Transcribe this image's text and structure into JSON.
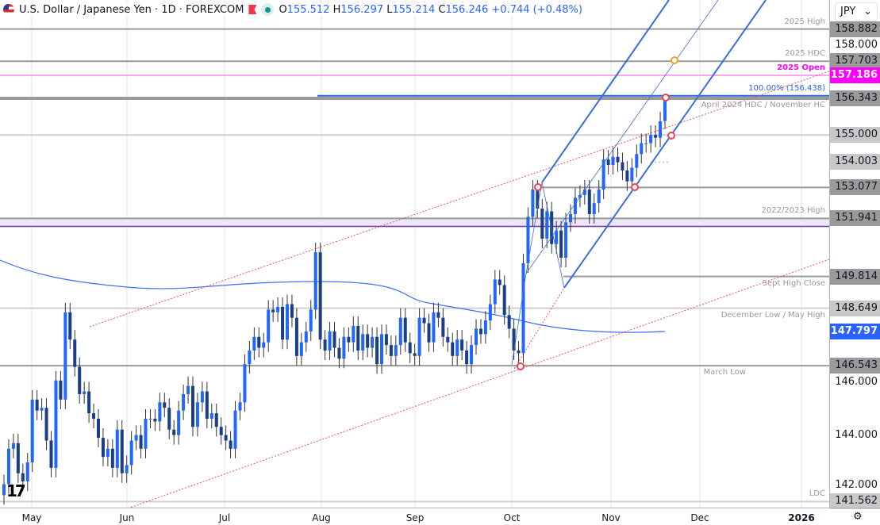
{
  "header": {
    "symbol_title": "U.S. Dollar / Japanese Yen · 1D · FOREXCOM",
    "open_label": "O",
    "open": "155.512",
    "high_label": "H",
    "high": "156.297",
    "low_label": "L",
    "low": "155.214",
    "close_label": "C",
    "close": "156.246",
    "change": "+0.744 (+0.48%)"
  },
  "currency_select": {
    "value": "JPY"
  },
  "colors": {
    "up": "#2166ff",
    "down": "#1b3f87",
    "ma": "#3d6ff0",
    "channel": "#3a6fd8",
    "trend": "#f05060",
    "open_line": "#ff00ff",
    "level": "#9598a1"
  },
  "levels": [
    {
      "label": "2025 High",
      "value": "158.882",
      "price": 158.882
    },
    {
      "label": "2025 HDC",
      "value": "157.703",
      "price": 157.703
    },
    {
      "label": "2025 Open",
      "value": "157.186",
      "price": 157.186
    },
    {
      "label": "100.00% (156.438)",
      "value": "",
      "price": 156.438
    },
    {
      "label": "April 2024 HDC / November HC",
      "value": "156.343",
      "price": 156.343
    },
    {
      "label": "",
      "value": "155.000",
      "price": 155.0
    },
    {
      "label": "",
      "value": "154.003",
      "price": 154.003
    },
    {
      "label": "",
      "value": "153.077",
      "price": 153.077
    },
    {
      "label": "2022/2023 High",
      "value": "151.941",
      "price": 151.941
    },
    {
      "label": "Sept High Close",
      "value": "149.814",
      "price": 149.814
    },
    {
      "label": "December Low / May High",
      "value": "148.649",
      "price": 148.649
    },
    {
      "label": "",
      "value": "147.797",
      "price": 147.797
    },
    {
      "label": "March Low",
      "value": "146.543",
      "price": 146.543
    },
    {
      "label": "LDC",
      "value": "141.562",
      "price": 141.562
    }
  ],
  "price_ticks": [
    "158.000",
    "146.000",
    "144.000",
    "142.000"
  ],
  "x_labels": [
    "May",
    "Jun",
    "Jul",
    "Aug",
    "Sep",
    "Oct",
    "Nov",
    "Dec",
    "2026"
  ],
  "chart_data": {
    "type": "candlestick",
    "closes": [
      142.2,
      143.5,
      143.7,
      142.6,
      142.3,
      143.0,
      145.3,
      144.9,
      145.0,
      143.8,
      142.8,
      146.0,
      145.3,
      148.5,
      147.5,
      146.5,
      145.5,
      145.6,
      144.8,
      144.6,
      143.9,
      143.2,
      143.5,
      142.8,
      144.2,
      142.6,
      142.9,
      143.8,
      144.0,
      143.5,
      144.6,
      144.6,
      144.5,
      145.2,
      145.0,
      144.2,
      144.0,
      144.9,
      145.5,
      145.8,
      144.3,
      145.2,
      145.6,
      144.6,
      144.8,
      144.3,
      144.0,
      143.8,
      143.5,
      144.9,
      145.2,
      146.6,
      147.1,
      147.6,
      147.2,
      147.4,
      148.6,
      148.5,
      148.7,
      147.5,
      148.8,
      148.3,
      146.9,
      147.4,
      147.8,
      148.6,
      150.7,
      147.5,
      147.1,
      147.8,
      147.2,
      146.8,
      147.6,
      147.4,
      148.0,
      147.1,
      147.7,
      147.2,
      147.6,
      146.6,
      147.7,
      147.3,
      146.9,
      147.3,
      148.3,
      147.4,
      147.0,
      146.9,
      148.3,
      148.1,
      147.4,
      148.5,
      148.3,
      147.6,
      147.4,
      146.9,
      147.5,
      147.1,
      146.6,
      147.3,
      147.9,
      147.7,
      148.2,
      148.8,
      149.7,
      149.5,
      148.4,
      147.9,
      147.1,
      147.0,
      150.3,
      152.0,
      153.0,
      152.3,
      151.2,
      152.2,
      151.0,
      151.5,
      150.5,
      151.8,
      152.1,
      152.7,
      152.8,
      153.0,
      152.1,
      152.5,
      153.0,
      154.1,
      153.9,
      154.2,
      154.0,
      153.7,
      153.3,
      153.8,
      154.3,
      154.7,
      154.7,
      155.0,
      154.9,
      155.5
    ],
    "last": {
      "o": 155.512,
      "h": 156.297,
      "l": 155.214,
      "c": 156.246
    }
  }
}
